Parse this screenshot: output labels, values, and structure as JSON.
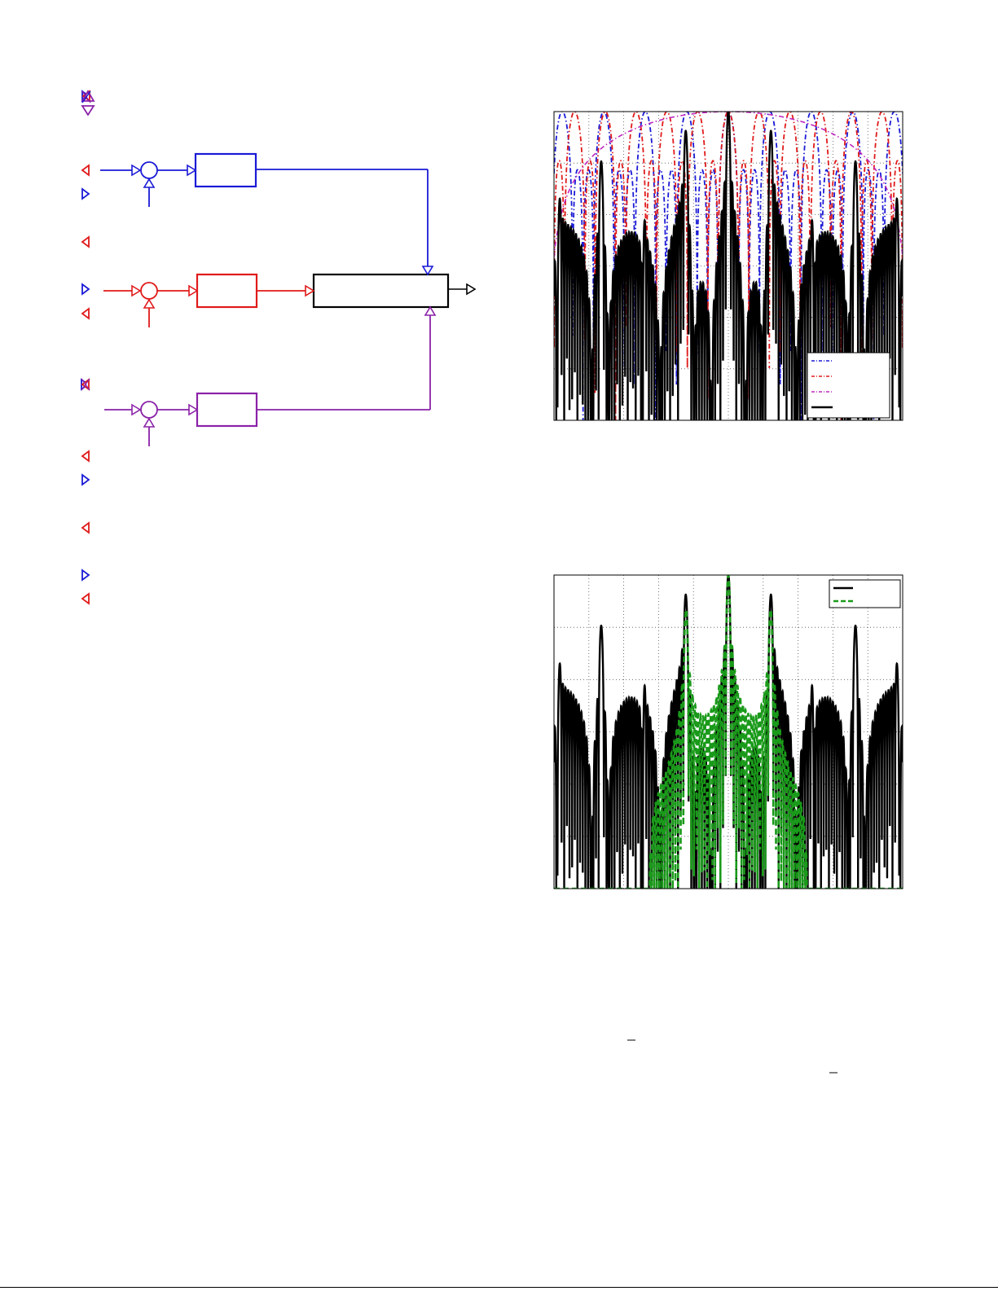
{
  "colors": {
    "blue": "#1a1ad6",
    "red": "#e01a1a",
    "purple": "#8a22a8",
    "magenta": "#c028c0",
    "black": "#000000",
    "green": "#1a9a1a",
    "grid": "#555555"
  },
  "block_diagram": {
    "branches": [
      "blue",
      "red",
      "purple"
    ],
    "output_block_label": "",
    "branch_block_labels": [
      "",
      "",
      ""
    ]
  },
  "chart_data": [
    {
      "type": "line",
      "title": "",
      "xlabel": "",
      "ylabel": "",
      "grid": true,
      "legend_placement": "bottom-right",
      "series": [
        {
          "color": "#1a1ad6",
          "style": "dash-dot",
          "description_shape": "periodic lobes, period ~3x blue"
        },
        {
          "color": "#e01a1a",
          "style": "dash-dot",
          "description_shape": "periodic lobes"
        },
        {
          "color": "#c028c0",
          "style": "dash-dot",
          "description_shape": "single wide envelope"
        },
        {
          "color": "#000000",
          "style": "solid",
          "description_shape": "product pattern with narrow main lobe"
        }
      ]
    },
    {
      "type": "line",
      "title": "",
      "xlabel": "",
      "ylabel": "",
      "grid": true,
      "legend_placement": "top-right",
      "series": [
        {
          "color": "#000000",
          "style": "solid"
        },
        {
          "color": "#1a9a1a",
          "style": "dashed"
        }
      ]
    }
  ]
}
